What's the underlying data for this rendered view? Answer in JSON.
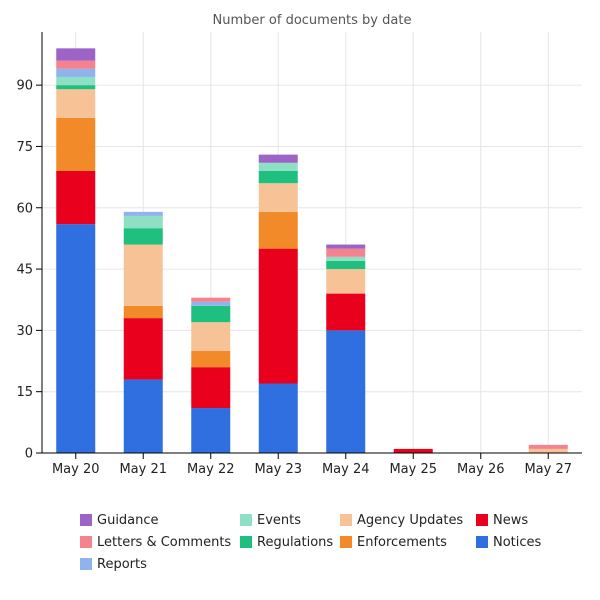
{
  "chart_data": {
    "type": "bar",
    "stacked": true,
    "title": "Number of documents by date",
    "xlabel": "",
    "ylabel": "",
    "categories": [
      "May 20",
      "May 21",
      "May 22",
      "May 23",
      "May 24",
      "May 25",
      "May 26",
      "May 27"
    ],
    "ylim": [
      0,
      103
    ],
    "yticks": [
      0,
      15,
      30,
      45,
      60,
      75,
      90
    ],
    "grid": true,
    "legend_position": "bottom",
    "series": [
      {
        "name": "Notices",
        "color": "#2f6fdf",
        "values": [
          56,
          18,
          11,
          17,
          30,
          0,
          0,
          0
        ]
      },
      {
        "name": "News",
        "color": "#e8001c",
        "values": [
          13,
          15,
          10,
          33,
          9,
          1,
          0,
          0
        ]
      },
      {
        "name": "Enforcements",
        "color": "#f28a2a",
        "values": [
          13,
          3,
          4,
          9,
          0,
          0,
          0,
          0
        ]
      },
      {
        "name": "Agency Updates",
        "color": "#f7c396",
        "values": [
          7,
          15,
          7,
          7,
          6,
          0,
          0,
          1
        ]
      },
      {
        "name": "Regulations",
        "color": "#1fbf7f",
        "values": [
          1,
          4,
          4,
          3,
          2,
          0,
          0,
          0
        ]
      },
      {
        "name": "Events",
        "color": "#8de0c4",
        "values": [
          2,
          3,
          0,
          2,
          1,
          0,
          0,
          0
        ]
      },
      {
        "name": "Reports",
        "color": "#8fb3ec",
        "values": [
          2,
          1,
          1,
          0,
          0,
          0,
          0,
          0
        ]
      },
      {
        "name": "Letters & Comments",
        "color": "#f4838f",
        "values": [
          2,
          0,
          1,
          0,
          2,
          0,
          0,
          1
        ]
      },
      {
        "name": "Guidance",
        "color": "#9c64c6",
        "values": [
          3,
          0,
          0,
          2,
          1,
          0,
          0,
          0
        ]
      }
    ],
    "legend_order": [
      "Guidance",
      "Events",
      "Agency Updates",
      "News",
      "Letters & Comments",
      "Regulations",
      "Enforcements",
      "Notices",
      "Reports"
    ]
  }
}
